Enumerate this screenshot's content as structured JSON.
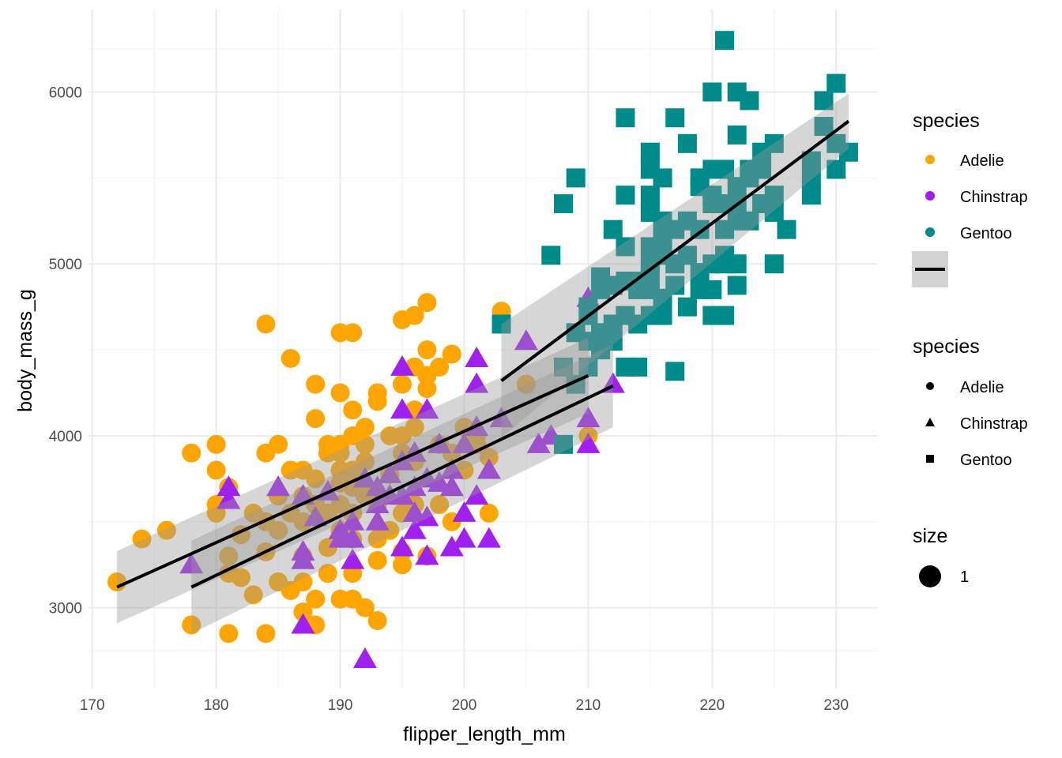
{
  "chart_data": {
    "type": "scatter",
    "xlabel": "flipper_length_mm",
    "ylabel": "body_mass_g",
    "xlim": [
      169.7,
      233.3
    ],
    "ylim": [
      2530,
      6480
    ],
    "x_ticks": [
      170,
      180,
      190,
      200,
      210,
      220,
      230
    ],
    "y_ticks": [
      3000,
      4000,
      5000,
      6000
    ],
    "x_tick_labels": [
      "170",
      "180",
      "190",
      "200",
      "210",
      "220",
      "230"
    ],
    "y_tick_labels": [
      "3000",
      "4000",
      "5000",
      "6000"
    ],
    "grid": true,
    "legend_position": "right",
    "colors": {
      "Adelie": "#FFA500",
      "Chinstrap": "#A020F0",
      "Gentoo": "#008B8B"
    },
    "shapes": {
      "Adelie": "circle",
      "Chinstrap": "triangle",
      "Gentoo": "square"
    },
    "series": [
      {
        "name": "Adelie",
        "points": [
          [
            172,
            3150
          ],
          [
            174,
            3400
          ],
          [
            176,
            3450
          ],
          [
            178,
            3900
          ],
          [
            178,
            2900
          ],
          [
            180,
            3950
          ],
          [
            180,
            3800
          ],
          [
            180,
            3600
          ],
          [
            180,
            3550
          ],
          [
            181,
            3300
          ],
          [
            181,
            2850
          ],
          [
            181,
            3700
          ],
          [
            181,
            3200
          ],
          [
            182,
            3175
          ],
          [
            182,
            3425
          ],
          [
            183,
            3075
          ],
          [
            183,
            3550
          ],
          [
            184,
            4650
          ],
          [
            184,
            2850
          ],
          [
            184,
            3900
          ],
          [
            184,
            3325
          ],
          [
            184,
            3500
          ],
          [
            185,
            3950
          ],
          [
            185,
            3150
          ],
          [
            185,
            3650
          ],
          [
            185,
            3450
          ],
          [
            186,
            4450
          ],
          [
            186,
            3800
          ],
          [
            186,
            3550
          ],
          [
            186,
            3100
          ],
          [
            187,
            3800
          ],
          [
            187,
            3500
          ],
          [
            187,
            3300
          ],
          [
            187,
            3150
          ],
          [
            187,
            2975
          ],
          [
            187,
            3650
          ],
          [
            188,
            4300
          ],
          [
            188,
            4100
          ],
          [
            188,
            3050
          ],
          [
            188,
            3600
          ],
          [
            188,
            2900
          ],
          [
            188,
            3750
          ],
          [
            189,
            3950
          ],
          [
            189,
            3550
          ],
          [
            189,
            3350
          ],
          [
            189,
            3900
          ],
          [
            189,
            3200
          ],
          [
            190,
            4600
          ],
          [
            190,
            4250
          ],
          [
            190,
            3950
          ],
          [
            190,
            3800
          ],
          [
            190,
            3725
          ],
          [
            190,
            3450
          ],
          [
            190,
            3050
          ],
          [
            190,
            3600
          ],
          [
            190,
            3900
          ],
          [
            191,
            4600
          ],
          [
            191,
            4150
          ],
          [
            191,
            3800
          ],
          [
            191,
            3700
          ],
          [
            191,
            3550
          ],
          [
            191,
            3400
          ],
          [
            191,
            3200
          ],
          [
            191,
            3050
          ],
          [
            191,
            4000
          ],
          [
            192,
            4050
          ],
          [
            192,
            3850
          ],
          [
            192,
            3950
          ],
          [
            192,
            3650
          ],
          [
            192,
            3000
          ],
          [
            193,
            4250
          ],
          [
            193,
            4200
          ],
          [
            193,
            3600
          ],
          [
            193,
            3400
          ],
          [
            193,
            3275
          ],
          [
            193,
            2925
          ],
          [
            194,
            4000
          ],
          [
            194,
            3450
          ],
          [
            194,
            3775
          ],
          [
            195,
            4675
          ],
          [
            195,
            4300
          ],
          [
            195,
            4000
          ],
          [
            195,
            3900
          ],
          [
            195,
            3550
          ],
          [
            195,
            3325
          ],
          [
            195,
            3250
          ],
          [
            196,
            4700
          ],
          [
            196,
            4400
          ],
          [
            196,
            4150
          ],
          [
            196,
            3850
          ],
          [
            196,
            3600
          ],
          [
            196,
            4050
          ],
          [
            197,
            4775
          ],
          [
            197,
            4500
          ],
          [
            197,
            4275
          ],
          [
            197,
            3300
          ],
          [
            197,
            4350
          ],
          [
            198,
            4400
          ],
          [
            198,
            3950
          ],
          [
            198,
            3600
          ],
          [
            199,
            4475
          ],
          [
            199,
            3900
          ],
          [
            199,
            3500
          ],
          [
            200,
            4050
          ],
          [
            200,
            3800
          ],
          [
            201,
            4000
          ],
          [
            201,
            3950
          ],
          [
            202,
            3875
          ],
          [
            202,
            3550
          ],
          [
            203,
            4725
          ],
          [
            205,
            4300
          ],
          [
            210,
            4000
          ]
        ]
      },
      {
        "name": "Chinstrap",
        "points": [
          [
            178,
            3250
          ],
          [
            181,
            3700
          ],
          [
            181,
            3625
          ],
          [
            185,
            3700
          ],
          [
            187,
            3650
          ],
          [
            187,
            3325
          ],
          [
            187,
            3275
          ],
          [
            187,
            2900
          ],
          [
            188,
            3525
          ],
          [
            189,
            3675
          ],
          [
            190,
            3450
          ],
          [
            190,
            3400
          ],
          [
            191,
            3500
          ],
          [
            191,
            3400
          ],
          [
            191,
            3275
          ],
          [
            192,
            3750
          ],
          [
            192,
            2700
          ],
          [
            193,
            3500
          ],
          [
            193,
            3700
          ],
          [
            193,
            3600
          ],
          [
            194,
            3650
          ],
          [
            194,
            3775
          ],
          [
            195,
            4400
          ],
          [
            195,
            4150
          ],
          [
            195,
            3650
          ],
          [
            195,
            3350
          ],
          [
            195,
            3850
          ],
          [
            196,
            3700
          ],
          [
            196,
            3550
          ],
          [
            196,
            3900
          ],
          [
            196,
            3450
          ],
          [
            197,
            4150
          ],
          [
            197,
            3750
          ],
          [
            197,
            3525
          ],
          [
            197,
            3300
          ],
          [
            198,
            3950
          ],
          [
            198,
            3725
          ],
          [
            199,
            3800
          ],
          [
            199,
            3700
          ],
          [
            199,
            3350
          ],
          [
            200,
            3550
          ],
          [
            200,
            3400
          ],
          [
            200,
            3950
          ],
          [
            201,
            4050
          ],
          [
            201,
            3650
          ],
          [
            201,
            4450
          ],
          [
            201,
            4300
          ],
          [
            202,
            3800
          ],
          [
            202,
            3400
          ],
          [
            203,
            4100
          ],
          [
            205,
            4550
          ],
          [
            206,
            3950
          ],
          [
            207,
            4000
          ],
          [
            210,
            4800
          ],
          [
            210,
            3950
          ],
          [
            210,
            4100
          ],
          [
            212,
            4300
          ]
        ]
      },
      {
        "name": "Gentoo",
        "points": [
          [
            203,
            4650
          ],
          [
            207,
            5050
          ],
          [
            208,
            5350
          ],
          [
            208,
            4400
          ],
          [
            208,
            3950
          ],
          [
            209,
            5500
          ],
          [
            209,
            4600
          ],
          [
            209,
            4300
          ],
          [
            210,
            4750
          ],
          [
            210,
            4700
          ],
          [
            210,
            4550
          ],
          [
            210,
            4400
          ],
          [
            211,
            4925
          ],
          [
            211,
            4850
          ],
          [
            211,
            4600
          ],
          [
            211,
            4500
          ],
          [
            212,
            5200
          ],
          [
            212,
            4875
          ],
          [
            212,
            4550
          ],
          [
            212,
            4650
          ],
          [
            213,
            5850
          ],
          [
            213,
            5400
          ],
          [
            213,
            5100
          ],
          [
            213,
            4900
          ],
          [
            213,
            4400
          ],
          [
            213,
            4700
          ],
          [
            214,
            4650
          ],
          [
            214,
            4400
          ],
          [
            214,
            4900
          ],
          [
            214,
            4850
          ],
          [
            215,
            5650
          ],
          [
            215,
            5550
          ],
          [
            215,
            5400
          ],
          [
            215,
            5300
          ],
          [
            215,
            5000
          ],
          [
            215,
            4950
          ],
          [
            215,
            4700
          ],
          [
            215,
            4850
          ],
          [
            215,
            5100
          ],
          [
            216,
            5500
          ],
          [
            216,
            5250
          ],
          [
            216,
            5050
          ],
          [
            216,
            4800
          ],
          [
            216,
            4700
          ],
          [
            216,
            5150
          ],
          [
            217,
            5850
          ],
          [
            217,
            5200
          ],
          [
            217,
            4875
          ],
          [
            217,
            4375
          ],
          [
            217,
            5000
          ],
          [
            218,
            5700
          ],
          [
            218,
            5250
          ],
          [
            218,
            4750
          ],
          [
            218,
            5050
          ],
          [
            219,
            5500
          ],
          [
            219,
            5200
          ],
          [
            219,
            4950
          ],
          [
            219,
            4850
          ],
          [
            219,
            5450
          ],
          [
            220,
            6000
          ],
          [
            220,
            5550
          ],
          [
            220,
            5350
          ],
          [
            220,
            5000
          ],
          [
            220,
            4850
          ],
          [
            220,
            4700
          ],
          [
            220,
            5400
          ],
          [
            221,
            6300
          ],
          [
            221,
            5550
          ],
          [
            221,
            5350
          ],
          [
            221,
            5050
          ],
          [
            221,
            5000
          ],
          [
            221,
            4700
          ],
          [
            221,
            5200
          ],
          [
            222,
            6000
          ],
          [
            222,
            5750
          ],
          [
            222,
            5350
          ],
          [
            222,
            5250
          ],
          [
            222,
            5000
          ],
          [
            222,
            4875
          ],
          [
            222,
            5450
          ],
          [
            223,
            5950
          ],
          [
            223,
            5550
          ],
          [
            223,
            5250
          ],
          [
            223,
            5500
          ],
          [
            224,
            5550
          ],
          [
            224,
            5350
          ],
          [
            224,
            5650
          ],
          [
            225,
            5700
          ],
          [
            225,
            5300
          ],
          [
            225,
            5000
          ],
          [
            225,
            5400
          ],
          [
            226,
            5200
          ],
          [
            228,
            5400
          ],
          [
            228,
            5600
          ],
          [
            228,
            5500
          ],
          [
            229,
            5950
          ],
          [
            229,
            5800
          ],
          [
            230,
            6050
          ],
          [
            230,
            5700
          ],
          [
            230,
            5550
          ],
          [
            231,
            5650
          ]
        ]
      }
    ],
    "trend_lines": [
      {
        "series": "Adelie",
        "x": [
          172,
          210
        ],
        "y": [
          3120,
          4350
        ],
        "se_upper": [
          3330,
          4570
        ],
        "se_lower": [
          2910,
          4130
        ]
      },
      {
        "series": "Chinstrap",
        "x": [
          178,
          212
        ],
        "y": [
          3120,
          4290
        ],
        "se_upper": [
          3390,
          4530
        ],
        "se_lower": [
          2850,
          4050
        ]
      },
      {
        "series": "Gentoo",
        "x": [
          203,
          231
        ],
        "y": [
          4320,
          5830
        ],
        "se_upper": [
          4650,
          5990
        ],
        "se_lower": [
          3990,
          5670
        ]
      }
    ],
    "legend": {
      "color": {
        "title": "species",
        "items": [
          "Adelie",
          "Chinstrap",
          "Gentoo"
        ]
      },
      "shape": {
        "title": "species",
        "items": [
          "Adelie",
          "Chinstrap",
          "Gentoo"
        ]
      },
      "size": {
        "title": "size",
        "items": [
          "1"
        ]
      }
    }
  }
}
